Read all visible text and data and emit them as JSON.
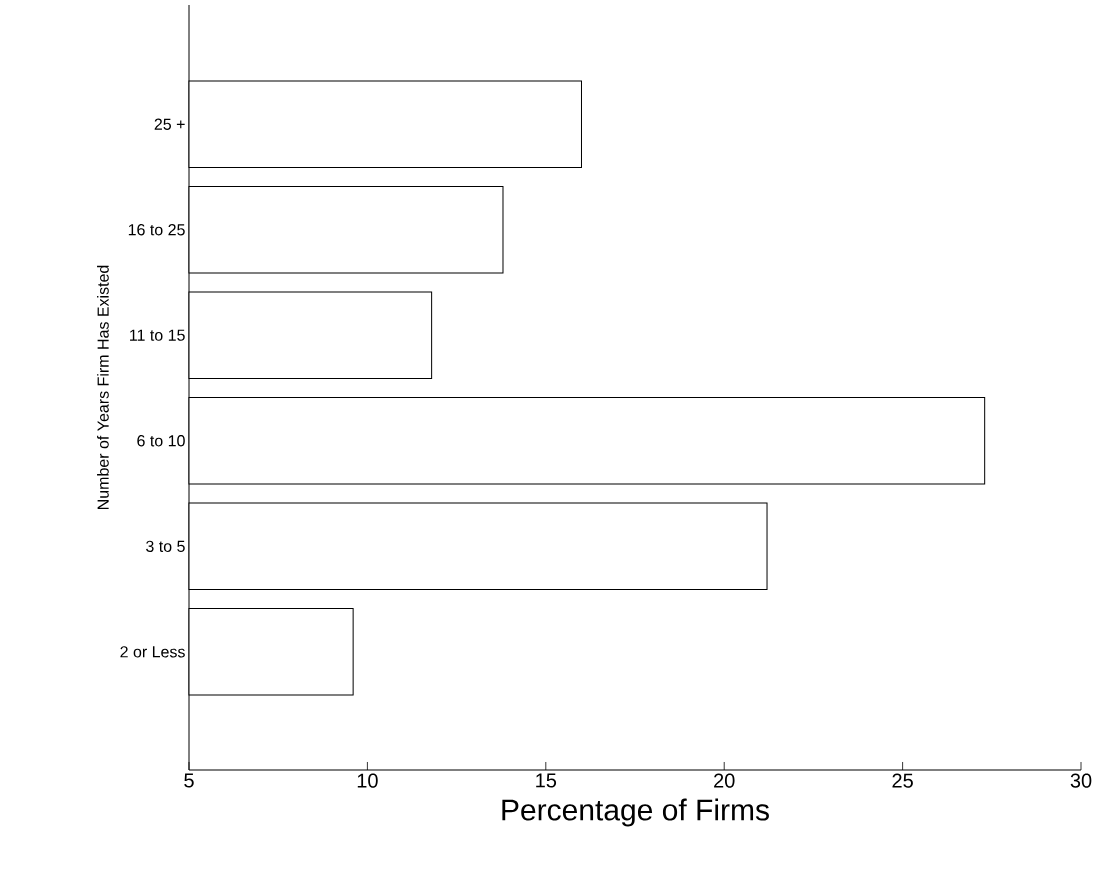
{
  "chart_data": {
    "type": "bar",
    "orientation": "horizontal",
    "xlabel": "Percentage of Firms",
    "ylabel": "Number of Years Firm Has Existed",
    "categories": [
      "25 +",
      "16 to 25",
      "11 to 15",
      "6 to 10",
      "3 to 5",
      "2 or Less"
    ],
    "values": [
      16.0,
      13.8,
      11.8,
      27.3,
      21.2,
      9.6
    ],
    "color": "#000000",
    "xlim": [
      5,
      30
    ],
    "xticks": [
      5,
      10,
      15,
      20,
      25,
      30
    ],
    "grid": false
  }
}
